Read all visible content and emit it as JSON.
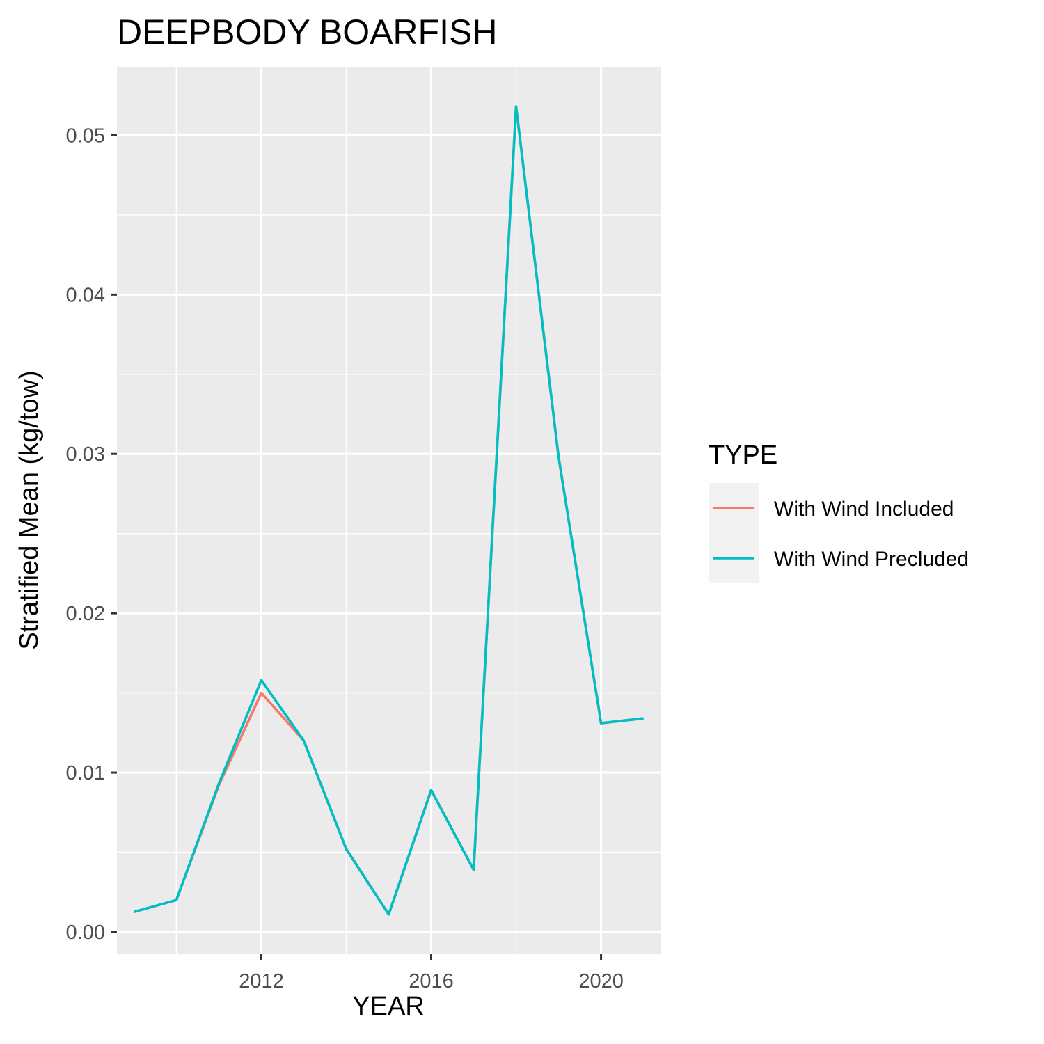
{
  "chart_data": {
    "type": "line",
    "title": "DEEPBODY BOARFISH",
    "xlabel": "YEAR",
    "ylabel": "Stratified Mean (kg/tow)",
    "xlim": [
      2008.6,
      2021.4
    ],
    "ylim": [
      -0.0014,
      0.0543
    ],
    "x_ticks": [
      2012,
      2016,
      2020
    ],
    "y_ticks": [
      0,
      0.01,
      0.02,
      0.03,
      0.04,
      0.05
    ],
    "x_tick_labels": [
      "2012",
      "2016",
      "2020"
    ],
    "y_tick_labels": [
      "0.00",
      "0.01",
      "0.02",
      "0.03",
      "0.04",
      "0.05"
    ],
    "grid": true,
    "panel_background": "#ebebeb",
    "legend": {
      "title": "TYPE",
      "position": "right"
    },
    "x": [
      2009,
      2010,
      2011,
      2012,
      2013,
      2014,
      2015,
      2016,
      2017,
      2018,
      2019,
      2020,
      2021
    ],
    "series": [
      {
        "name": "With Wind Included",
        "color": "#F8766D",
        "values": [
          0.00125,
          0.002,
          0.0092,
          0.015,
          0.012,
          0.0052,
          0.0011,
          0.0089,
          0.0039,
          0.0518,
          0.0298,
          0.0131,
          0.0134
        ]
      },
      {
        "name": "With Wind Precluded",
        "color": "#00BFC4",
        "values": [
          0.00125,
          0.002,
          0.0093,
          0.0158,
          0.012,
          0.0052,
          0.0011,
          0.0089,
          0.0039,
          0.0518,
          0.0298,
          0.0131,
          0.0134
        ]
      }
    ]
  }
}
